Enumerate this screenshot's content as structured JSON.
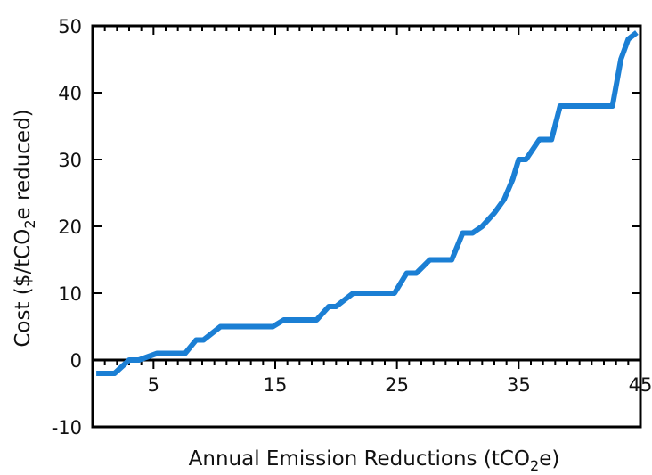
{
  "chart_data": {
    "type": "line",
    "title": "",
    "xlabel": {
      "main": "Annual Emission Reductions (tCO",
      "sub": "2",
      "tail": "e)"
    },
    "ylabel": {
      "main": "Cost ($/tCO",
      "sub": "2",
      "tail": "e reduced)"
    },
    "xlim": [
      0,
      45
    ],
    "ylim": [
      -10,
      50
    ],
    "x_ticks": [
      "5",
      "15",
      "25",
      "35",
      "45"
    ],
    "x_tick_values": [
      5,
      15,
      25,
      35,
      45
    ],
    "y_ticks": [
      "-10",
      "0",
      "10",
      "20",
      "30",
      "40",
      "50"
    ],
    "y_tick_values": [
      -10,
      0,
      10,
      20,
      30,
      40,
      50
    ],
    "grid": false,
    "legend": "none",
    "series": [
      {
        "color": "#1b7fd4",
        "x": [
          0.3,
          1.8,
          3.0,
          3.8,
          5.3,
          7.6,
          8.5,
          9.1,
          10.5,
          14.8,
          15.7,
          18.4,
          19.4,
          20.0,
          21.4,
          24.8,
          25.8,
          26.6,
          27.7,
          29.5,
          30.4,
          31.2,
          32.0,
          33.0,
          33.8,
          34.5,
          35.0,
          35.6,
          36.7,
          37.7,
          38.4,
          39.4,
          42.7,
          43.4,
          44.0,
          44.7
        ],
        "y": [
          -2,
          -2,
          0,
          0,
          1,
          1,
          3,
          3,
          5,
          5,
          6,
          6,
          8,
          8,
          10,
          10,
          13,
          13,
          15,
          15,
          19,
          19,
          20,
          22,
          24,
          27,
          30,
          30,
          33,
          33,
          38,
          38,
          38,
          45,
          48,
          49
        ]
      }
    ]
  }
}
